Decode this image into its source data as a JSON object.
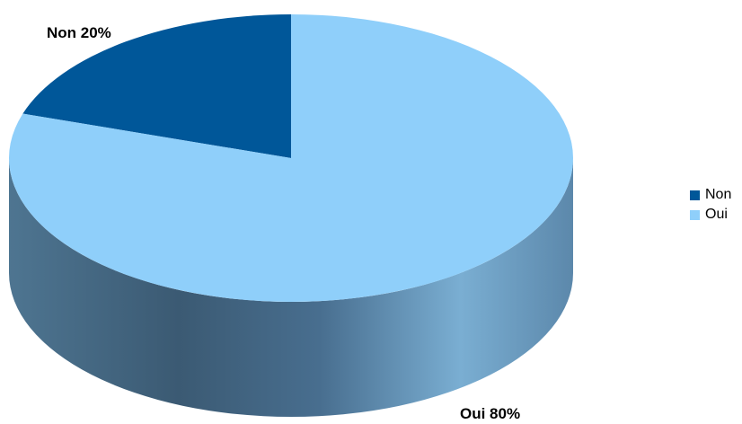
{
  "chart_data": {
    "type": "pie",
    "title": "",
    "categories": [
      "Non",
      "Oui"
    ],
    "values": [
      20,
      80
    ],
    "data_labels": [
      "Non 20%",
      "Oui 80%"
    ],
    "colors": [
      "#005799",
      "#8fcffa"
    ],
    "side_colors": [
      "#1f4561",
      "#4b6f8f"
    ],
    "three_d": true,
    "legend_position": "right"
  },
  "legend": {
    "items": [
      {
        "label": "Non",
        "color": "#005799"
      },
      {
        "label": "Oui",
        "color": "#8fcffa"
      }
    ]
  }
}
